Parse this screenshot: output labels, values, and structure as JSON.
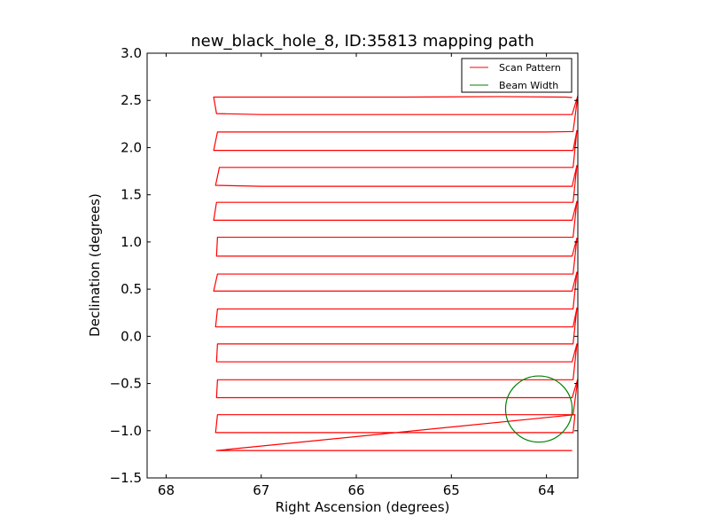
{
  "chart_data": {
    "type": "line",
    "title": "new_black_hole_8, ID:35813 mapping path",
    "xlabel": "Right Ascension (degrees)",
    "ylabel": "Declination (degrees)",
    "xlim": [
      68.2,
      63.67
    ],
    "ylim": [
      -1.5,
      3.0
    ],
    "x_ticks": [
      68,
      67,
      66,
      65,
      64
    ],
    "x_tick_labels": [
      "68",
      "67",
      "66",
      "65",
      "64"
    ],
    "y_ticks": [
      -1.5,
      -1.0,
      -0.5,
      0.0,
      0.5,
      1.0,
      1.5,
      2.0,
      2.5,
      3.0
    ],
    "y_tick_labels": [
      "−1.5",
      "−1.0",
      "−0.5",
      "0.0",
      "0.5",
      "1.0",
      "1.5",
      "2.0",
      "2.5",
      "3.0"
    ],
    "grid": false,
    "legend_position": "top-right",
    "series": [
      {
        "name": "Scan Pattern",
        "kind": "line",
        "color": "#ff0000",
        "x": [
          63.73,
          63.8,
          64.5,
          65.5,
          66.5,
          67.5,
          67.47,
          67.0,
          66.0,
          65.0,
          64.0,
          63.73,
          63.67,
          63.72,
          64.0,
          65.0,
          66.0,
          67.0,
          67.46,
          67.5,
          67.0,
          66.0,
          65.0,
          64.0,
          63.72,
          63.68,
          63.72,
          64.0,
          65.0,
          66.0,
          67.0,
          67.44,
          67.48,
          67.0,
          66.0,
          65.0,
          64.0,
          63.73,
          63.68,
          63.72,
          64.0,
          65.0,
          66.0,
          67.0,
          67.47,
          67.5,
          67.0,
          66.0,
          65.0,
          64.0,
          63.73,
          63.68,
          63.72,
          64.0,
          65.0,
          66.0,
          67.0,
          67.46,
          67.47,
          67.0,
          66.0,
          65.0,
          64.0,
          63.73,
          63.68,
          63.72,
          64.0,
          65.0,
          66.0,
          67.0,
          67.46,
          67.5,
          67.0,
          66.0,
          65.0,
          64.0,
          63.73,
          63.68,
          63.72,
          64.0,
          65.0,
          66.0,
          67.0,
          67.46,
          67.48,
          67.0,
          66.0,
          65.0,
          64.0,
          63.72,
          63.68,
          63.72,
          64.0,
          65.0,
          66.0,
          67.0,
          67.46,
          67.47,
          67.0,
          66.0,
          65.0,
          64.0,
          63.73,
          63.68,
          63.72,
          64.0,
          65.0,
          66.0,
          67.0,
          67.46,
          67.47,
          67.0,
          66.0,
          65.0,
          64.0,
          63.73,
          63.67,
          63.72,
          64.0,
          65.0,
          66.0,
          67.0,
          67.46,
          67.48,
          67.0,
          66.0,
          65.0,
          64.0,
          63.72,
          63.7
        ],
        "y": [
          2.53,
          2.535,
          2.54,
          2.535,
          2.535,
          2.535,
          2.36,
          2.35,
          2.35,
          2.35,
          2.35,
          2.35,
          2.55,
          2.17,
          2.165,
          2.165,
          2.165,
          2.165,
          2.165,
          1.97,
          1.97,
          1.97,
          1.97,
          1.97,
          1.97,
          2.18,
          1.79,
          1.79,
          1.79,
          1.79,
          1.79,
          1.79,
          1.6,
          1.59,
          1.59,
          1.59,
          1.59,
          1.59,
          1.81,
          1.42,
          1.42,
          1.42,
          1.42,
          1.42,
          1.42,
          1.23,
          1.23,
          1.23,
          1.23,
          1.23,
          1.23,
          1.43,
          1.05,
          1.05,
          1.05,
          1.05,
          1.05,
          1.05,
          0.85,
          0.85,
          0.85,
          0.85,
          0.85,
          0.85,
          1.04,
          0.66,
          0.66,
          0.66,
          0.66,
          0.66,
          0.66,
          0.48,
          0.48,
          0.48,
          0.48,
          0.48,
          0.48,
          0.68,
          0.29,
          0.29,
          0.29,
          0.29,
          0.29,
          0.29,
          0.1,
          0.1,
          0.1,
          0.1,
          0.1,
          0.1,
          0.3,
          -0.08,
          -0.08,
          -0.08,
          -0.08,
          -0.08,
          -0.08,
          -0.27,
          -0.27,
          -0.27,
          -0.27,
          -0.27,
          -0.27,
          -0.08,
          -0.46,
          -0.46,
          -0.46,
          -0.46,
          -0.46,
          -0.46,
          -0.65,
          -0.65,
          -0.65,
          -0.65,
          -0.65,
          -0.65,
          -0.45,
          -0.83,
          -0.83,
          -0.83,
          -0.83,
          -0.83,
          -0.83,
          -1.02,
          -1.02,
          -1.02,
          -1.02,
          -1.02,
          -1.02,
          -0.83
        ]
      },
      {
        "name": "Beam Width",
        "kind": "circle",
        "color": "#008000",
        "center": [
          64.08,
          -0.77
        ],
        "radius": 0.35
      }
    ],
    "last_row": {
      "x": [
        67.47,
        67.0,
        66.0,
        65.0,
        64.0,
        63.73
      ],
      "y": [
        -1.21,
        -1.21,
        -1.21,
        -1.21,
        -1.21,
        -1.21
      ]
    }
  }
}
